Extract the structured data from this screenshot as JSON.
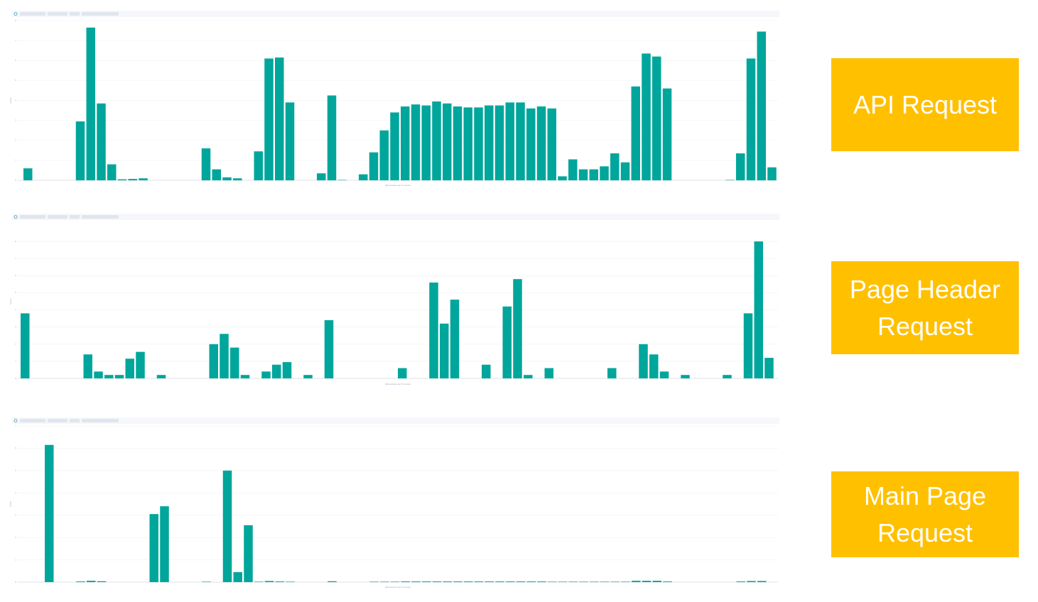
{
  "chart_data": [
    {
      "type": "bar",
      "title": "API Request",
      "x_label": "@timestamp per 5 minutes",
      "y_label": "Count",
      "color": "#00a69b",
      "ylim": [
        0,
        8
      ],
      "yticks": [
        0,
        1,
        2,
        3,
        4,
        5,
        6,
        7,
        8
      ],
      "grid": true,
      "values": [
        0.6,
        0,
        0,
        0,
        0,
        2.95,
        7.65,
        3.85,
        0.8,
        0.05,
        0.07,
        0.1,
        0,
        0,
        0,
        0,
        0,
        1.6,
        0.55,
        0.15,
        0.1,
        0,
        1.45,
        6.1,
        6.15,
        3.9,
        0,
        0,
        0.35,
        4.25,
        0.02,
        0,
        0.3,
        1.4,
        2.5,
        3.4,
        3.7,
        3.8,
        3.75,
        3.95,
        3.85,
        3.7,
        3.65,
        3.65,
        3.75,
        3.75,
        3.9,
        3.9,
        3.6,
        3.7,
        3.6,
        0.2,
        1.05,
        0.55,
        0.55,
        0.7,
        1.35,
        0.9,
        4.7,
        6.35,
        6.2,
        4.6,
        0,
        0,
        0,
        0,
        0,
        0.02,
        1.35,
        6.1,
        7.45,
        0.65
      ]
    },
    {
      "type": "bar",
      "title": "Page Header Request",
      "x_label": "@timestamp per 5 minutes",
      "y_label": "Count",
      "color": "#00a69b",
      "ylim": [
        0,
        9
      ],
      "yticks": [
        0,
        1,
        2,
        3,
        4,
        5,
        6,
        7,
        8
      ],
      "grid": true,
      "values": [
        3.8,
        0,
        0,
        0,
        0,
        0,
        1.4,
        0.4,
        0.2,
        0.2,
        1.15,
        1.55,
        0,
        0.2,
        0,
        0,
        0,
        0,
        2.0,
        2.6,
        1.8,
        0.2,
        0,
        0.4,
        0.8,
        0.95,
        0,
        0.2,
        0,
        3.4,
        0,
        0,
        0,
        0,
        0,
        0,
        0.6,
        0,
        0,
        5.6,
        3.2,
        4.6,
        0,
        0,
        0.8,
        0,
        4.2,
        5.8,
        0.2,
        0,
        0.6,
        0,
        0,
        0,
        0,
        0,
        0.6,
        0,
        0,
        2.0,
        1.4,
        0.4,
        0,
        0.2,
        0,
        0,
        0,
        0.2,
        0,
        3.8,
        8.0,
        1.2
      ]
    },
    {
      "type": "bar",
      "title": "Main Page Request",
      "x_label": "@timestamp per 5 minutes",
      "y_label": "Count",
      "color": "#00a69b",
      "ylim": [
        0,
        7
      ],
      "yticks": [
        0,
        1,
        2,
        3,
        4,
        5,
        6,
        7
      ],
      "grid": true,
      "values": [
        0,
        0,
        6.15,
        0,
        0,
        0.03,
        0.06,
        0.04,
        0,
        0,
        0,
        0,
        3.05,
        3.4,
        0,
        0,
        0,
        0.02,
        0,
        5.0,
        0.45,
        2.55,
        0.02,
        0.05,
        0.03,
        0.02,
        0,
        0,
        0,
        0.04,
        0,
        0,
        0,
        0.02,
        0.02,
        0.02,
        0.03,
        0.03,
        0.03,
        0.03,
        0.03,
        0.03,
        0.03,
        0.03,
        0.03,
        0.03,
        0.03,
        0.03,
        0.03,
        0.03,
        0.02,
        0.02,
        0.02,
        0.02,
        0.02,
        0.02,
        0.02,
        0.02,
        0.06,
        0.06,
        0.06,
        0.03,
        0,
        0,
        0,
        0,
        0,
        0,
        0.03,
        0.05,
        0.05,
        0
      ]
    }
  ]
}
